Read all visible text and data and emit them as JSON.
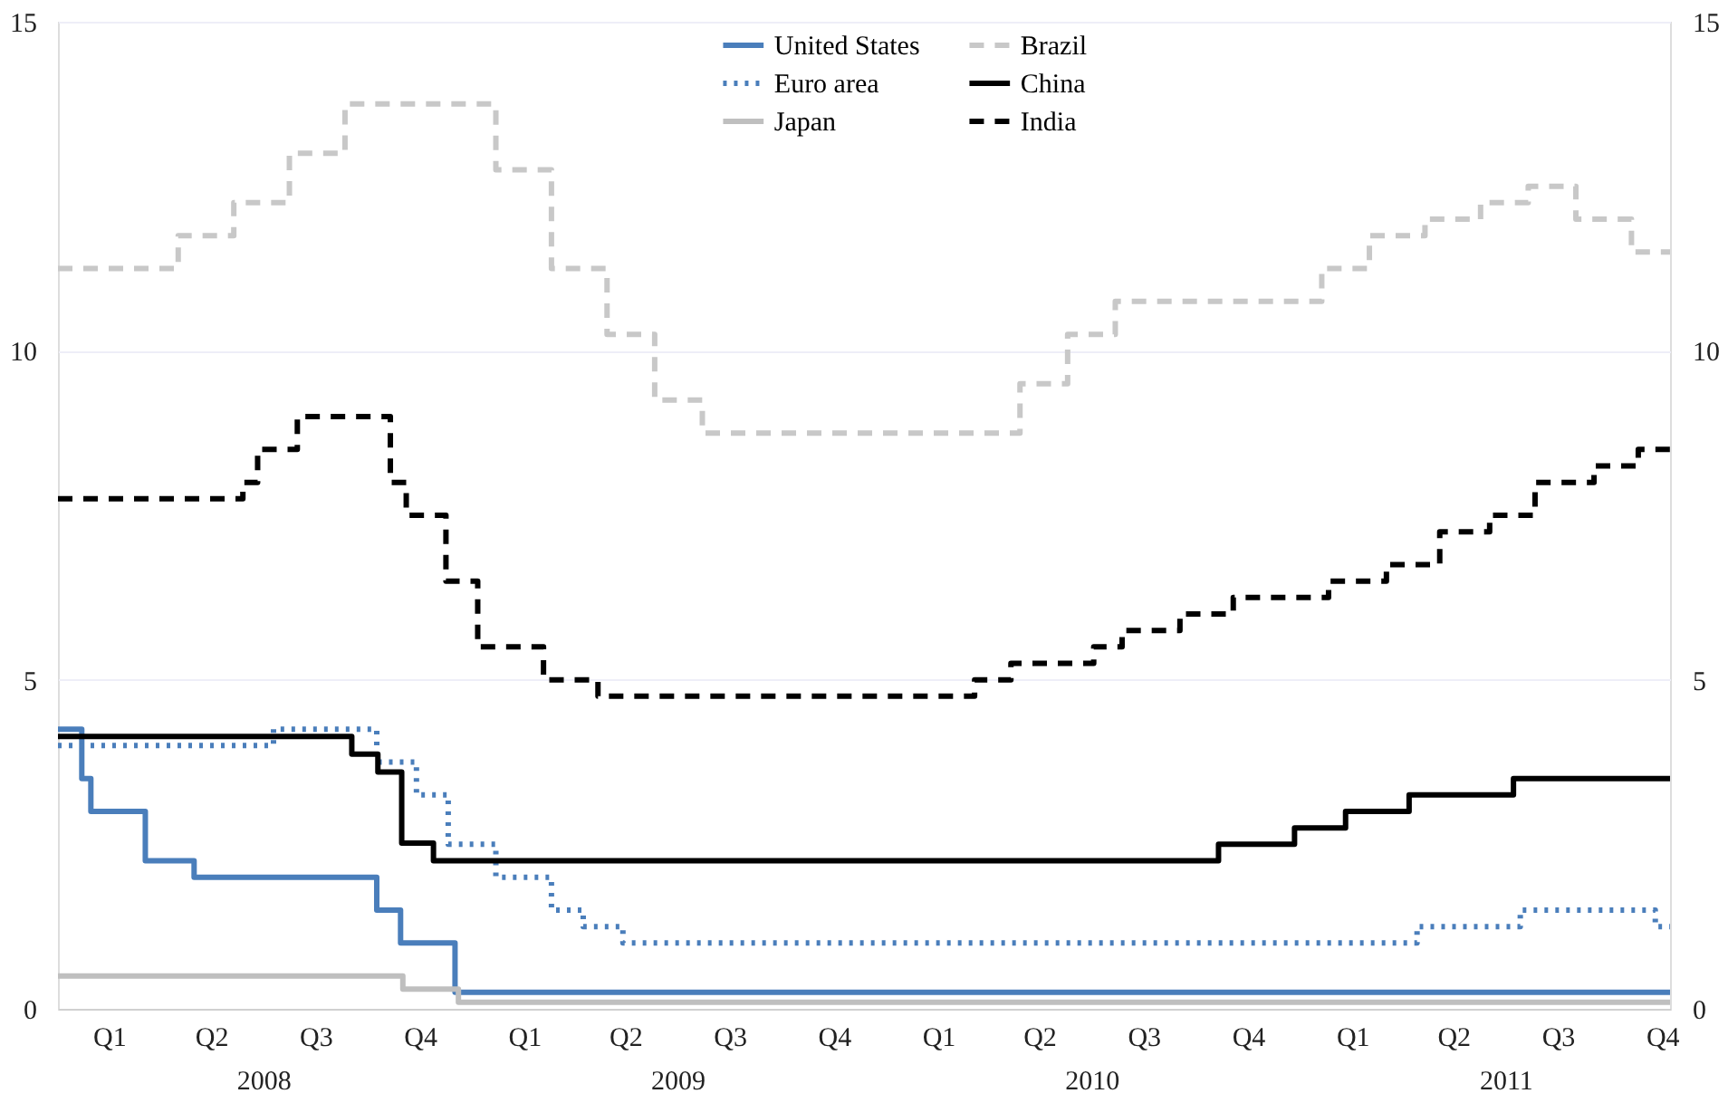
{
  "chart_data": {
    "type": "step",
    "legend": "top",
    "grid": "y",
    "xlim": [
      "2008-01-01",
      "2011-11-22"
    ],
    "ylim": [
      0,
      15
    ],
    "yticks": [
      0,
      5,
      10,
      15
    ],
    "y2lim": [
      0,
      15
    ],
    "y2ticks": [
      0,
      5,
      10,
      15
    ],
    "xticks": [
      {
        "value": "2008-02-15",
        "label": "Q1"
      },
      {
        "value": "2008-05-15",
        "label": "Q2"
      },
      {
        "value": "2008-08-15",
        "label": "Q3"
      },
      {
        "value": "2008-11-15",
        "label": "Q4"
      },
      {
        "value": "2009-02-15",
        "label": "Q1"
      },
      {
        "value": "2009-05-15",
        "label": "Q2"
      },
      {
        "value": "2009-08-15",
        "label": "Q3"
      },
      {
        "value": "2009-11-15",
        "label": "Q4"
      },
      {
        "value": "2010-02-15",
        "label": "Q1"
      },
      {
        "value": "2010-05-15",
        "label": "Q2"
      },
      {
        "value": "2010-08-15",
        "label": "Q3"
      },
      {
        "value": "2010-11-15",
        "label": "Q4"
      },
      {
        "value": "2011-02-15",
        "label": "Q1"
      },
      {
        "value": "2011-05-15",
        "label": "Q2"
      },
      {
        "value": "2011-08-15",
        "label": "Q3"
      },
      {
        "value": "2011-11-15",
        "label": "Q4"
      }
    ],
    "annotations": [
      "2008",
      "2009",
      "2010",
      "2011"
    ],
    "series": [
      {
        "name": "United States",
        "color": "#4a7ebb",
        "line_style": "solid",
        "x": [
          "2008-01-01",
          "2008-01-22",
          "2008-01-30",
          "2008-03-18",
          "2008-04-30",
          "2008-10-08",
          "2008-10-29",
          "2008-12-16",
          "2011-11-22"
        ],
        "values": [
          4.25,
          3.5,
          3.0,
          2.25,
          2.0,
          1.5,
          1.0,
          0.25,
          0.25
        ]
      },
      {
        "name": "Euro area",
        "color": "#4a7ebb",
        "line_style": "dotted",
        "x": [
          "2008-01-01",
          "2008-07-09",
          "2008-10-08",
          "2008-11-12",
          "2008-12-10",
          "2009-01-21",
          "2009-03-11",
          "2009-04-08",
          "2009-05-13",
          "2011-04-13",
          "2011-07-13",
          "2011-11-09",
          "2011-11-22"
        ],
        "values": [
          4.0,
          4.25,
          3.75,
          3.25,
          2.5,
          2.0,
          1.5,
          1.25,
          1.0,
          1.25,
          1.5,
          1.25,
          1.25
        ]
      },
      {
        "name": "Japan",
        "color": "#bfbfbf",
        "line_style": "solid",
        "x": [
          "2008-01-01",
          "2008-10-31",
          "2008-12-19",
          "2011-11-22"
        ],
        "values": [
          0.5,
          0.3,
          0.1,
          0.1
        ]
      },
      {
        "name": "Brazil",
        "color": "#c8c8c8",
        "line_style": "dashed",
        "x": [
          "2008-01-01",
          "2008-04-16",
          "2008-06-04",
          "2008-07-23",
          "2008-09-10",
          "2009-01-21",
          "2009-03-11",
          "2009-04-29",
          "2009-06-10",
          "2009-07-22",
          "2010-04-28",
          "2010-06-09",
          "2010-07-21",
          "2011-01-19",
          "2011-03-02",
          "2011-04-20",
          "2011-06-08",
          "2011-07-20",
          "2011-08-31",
          "2011-10-19",
          "2011-11-22"
        ],
        "values": [
          11.25,
          11.75,
          12.25,
          13.0,
          13.75,
          12.75,
          11.25,
          10.25,
          9.25,
          8.75,
          9.5,
          10.25,
          10.75,
          11.25,
          11.75,
          12.0,
          12.25,
          12.5,
          12.0,
          11.5,
          11.5
        ]
      },
      {
        "name": "China",
        "color": "#000000",
        "line_style": "solid",
        "x": [
          "2008-01-01",
          "2008-09-16",
          "2008-10-09",
          "2008-10-30",
          "2008-11-27",
          "2010-10-20",
          "2010-12-26",
          "2011-02-09",
          "2011-04-06",
          "2011-07-07",
          "2011-11-22"
        ],
        "values": [
          4.14,
          3.87,
          3.6,
          2.52,
          2.25,
          2.5,
          2.75,
          3.0,
          3.25,
          3.5,
          3.5
        ]
      },
      {
        "name": "India",
        "color": "#000000",
        "line_style": "dashed",
        "x": [
          "2008-01-01",
          "2008-06-12",
          "2008-06-25",
          "2008-07-30",
          "2008-10-20",
          "2008-11-03",
          "2008-12-08",
          "2009-01-05",
          "2009-03-04",
          "2009-04-21",
          "2010-03-19",
          "2010-04-20",
          "2010-07-02",
          "2010-07-27",
          "2010-09-16",
          "2010-11-02",
          "2011-01-25",
          "2011-03-17",
          "2011-05-03",
          "2011-06-16",
          "2011-07-26",
          "2011-09-16",
          "2011-10-25",
          "2011-11-22"
        ],
        "values": [
          7.75,
          8.0,
          8.5,
          9.0,
          8.0,
          7.5,
          6.5,
          5.5,
          5.0,
          4.75,
          5.0,
          5.25,
          5.5,
          5.75,
          6.0,
          6.25,
          6.5,
          6.75,
          7.25,
          7.5,
          8.0,
          8.25,
          8.5,
          8.5
        ]
      }
    ]
  }
}
